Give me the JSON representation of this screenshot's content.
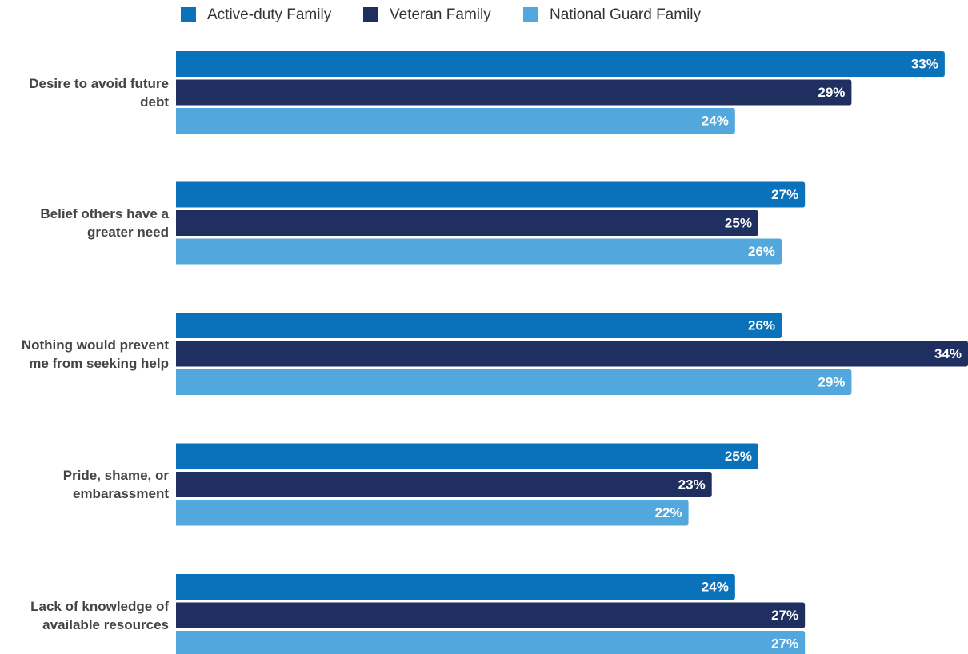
{
  "chart_data": {
    "type": "bar",
    "orientation": "horizontal",
    "categories": [
      "Desire to avoid future debt",
      "Belief others have a greater need",
      "Nothing would prevent me from seeking help",
      "Pride, shame, or embarassment",
      "Lack of knowledge of available resources"
    ],
    "series": [
      {
        "name": "Active-duty Family",
        "color": "#0a72bb",
        "values": [
          33,
          27,
          26,
          25,
          24
        ],
        "value_labels": [
          "33%",
          "27%",
          "26%",
          "25%",
          "24%"
        ]
      },
      {
        "name": "Veteran Family",
        "color": "#1f2f5f",
        "values": [
          29,
          25,
          34,
          23,
          27
        ],
        "value_labels": [
          "29%",
          "25%",
          "34%",
          "23%",
          "27%"
        ]
      },
      {
        "name": "National Guard Family",
        "color": "#52a8dc",
        "values": [
          24,
          26,
          29,
          22,
          27
        ],
        "value_labels": [
          "24%",
          "26%",
          "29%",
          "22%",
          "27%"
        ]
      }
    ],
    "xlim": [
      0,
      34
    ],
    "legend": "top"
  }
}
